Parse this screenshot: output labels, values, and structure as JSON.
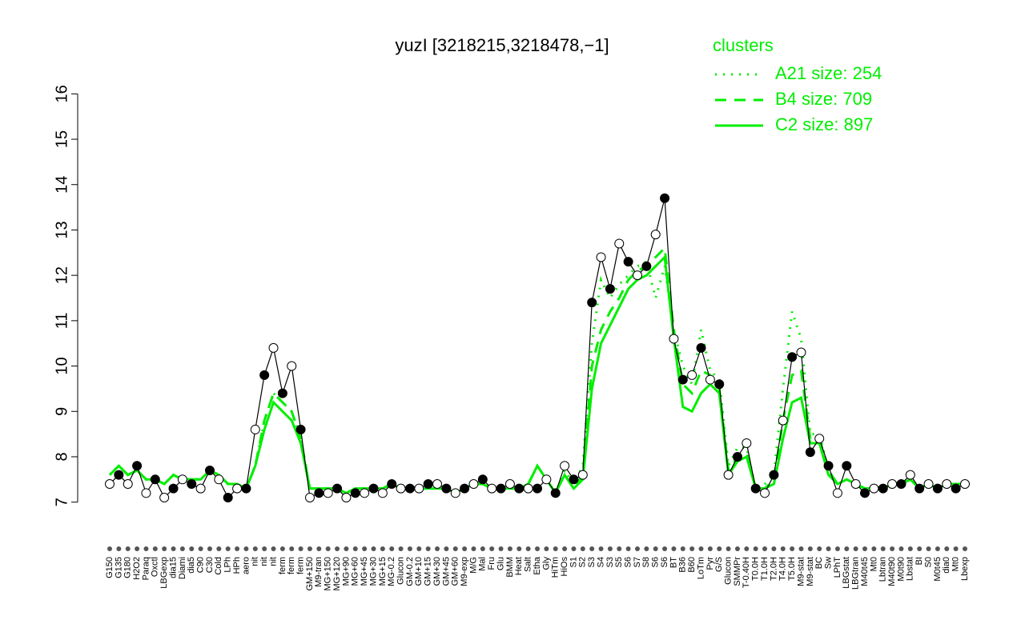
{
  "chart_data": {
    "type": "line",
    "title": "yuzI [3218215,3218478,−1]",
    "legend_title": "clusters",
    "legend_position": "top-right",
    "color": "#000000",
    "categories": [
      "G150",
      "G135",
      "G180",
      "H2O2",
      "Paraq",
      "Oxctl",
      "LBGexp",
      "dia15",
      "Diami",
      "dia5",
      "C90",
      "C30",
      "Cold",
      "LPh",
      "HPh",
      "aero",
      "nit",
      "nit",
      "nit",
      "ferm",
      "ferm",
      "ferm",
      "GM+150",
      "M9-tran",
      "MG+150",
      "MG+120",
      "MG+90",
      "MG+60",
      "MG+45",
      "MG+30",
      "MG+15",
      "MG-0.2",
      "Glucon",
      "GM-0.2",
      "GM+10",
      "GM+15",
      "GM+30",
      "GM+45",
      "GM+60",
      "M9-exp",
      "M/G",
      "Mal",
      "Fru",
      "Glu",
      "BMM",
      "Heat",
      "Salt",
      "Etha",
      "Gly",
      "HiTm",
      "HiOs",
      "S1",
      "S2",
      "S3",
      "S4",
      "S3",
      "S5",
      "S6",
      "S7",
      "S8",
      "S6",
      "S6",
      "BT",
      "B36",
      "B60",
      "LoTm",
      "Pyr",
      "G/S",
      "Glucon",
      "SMMPr",
      "T-0.40H",
      "T0.0H",
      "T1.0H",
      "T2.0H",
      "T4.0H",
      "T5.0H",
      "M9-stat",
      "M9-stat",
      "BC",
      "Sw",
      "LPhT",
      "LBGstat",
      "LBGtran",
      "M40t45",
      "Mt0",
      "Lbtran",
      "M40t90",
      "M0t90",
      "Lbstat",
      "BI",
      "S0",
      "M0t45",
      "dia0",
      "Mt0",
      "Lbexp"
    ],
    "values": [
      7.4,
      7.6,
      7.4,
      7.8,
      7.2,
      7.5,
      7.1,
      7.3,
      7.5,
      7.4,
      7.3,
      7.7,
      7.5,
      7.1,
      7.3,
      7.3,
      8.6,
      9.8,
      10.4,
      9.4,
      10.0,
      8.6,
      7.1,
      7.2,
      7.2,
      7.3,
      7.1,
      7.2,
      7.2,
      7.3,
      7.2,
      7.4,
      7.3,
      7.3,
      7.3,
      7.4,
      7.4,
      7.3,
      7.2,
      7.3,
      7.4,
      7.5,
      7.3,
      7.3,
      7.4,
      7.3,
      7.3,
      7.3,
      7.5,
      7.2,
      7.8,
      7.5,
      7.6,
      11.4,
      12.4,
      11.7,
      12.7,
      12.3,
      12.0,
      12.2,
      12.9,
      13.7,
      10.6,
      9.7,
      9.8,
      10.4,
      9.7,
      9.6,
      7.6,
      8.0,
      8.3,
      7.3,
      7.2,
      7.6,
      8.8,
      10.2,
      10.3,
      8.1,
      8.4,
      7.8,
      7.2,
      7.8,
      7.4,
      7.2,
      7.3,
      7.3,
      7.4,
      7.4,
      7.6,
      7.3,
      7.4,
      7.3,
      7.4,
      7.3,
      7.4
    ],
    "series": [
      {
        "name": "A21 size: 254",
        "color": "#00ee00",
        "linestyle": "dotted",
        "values": [
          7.6,
          7.8,
          7.6,
          7.7,
          7.5,
          7.5,
          7.4,
          7.6,
          7.5,
          7.5,
          7.5,
          7.7,
          7.6,
          7.4,
          7.4,
          7.3,
          7.8,
          8.8,
          9.4,
          9.2,
          9.0,
          8.4,
          7.3,
          7.3,
          7.3,
          7.3,
          7.2,
          7.3,
          7.3,
          7.3,
          7.3,
          7.4,
          7.3,
          7.3,
          7.3,
          7.3,
          7.3,
          7.3,
          7.2,
          7.3,
          7.4,
          7.4,
          7.3,
          7.3,
          7.3,
          7.3,
          7.4,
          7.8,
          7.5,
          7.2,
          7.7,
          7.4,
          7.8,
          10.5,
          11.9,
          11.5,
          11.8,
          12.0,
          12.2,
          12.3,
          11.5,
          12.2,
          10.8,
          10.0,
          9.6,
          10.8,
          9.9,
          9.7,
          7.8,
          8.2,
          8.2,
          7.3,
          7.4,
          7.6,
          9.5,
          11.2,
          10.6,
          8.5,
          8.5,
          7.7,
          7.4,
          7.5,
          7.4,
          7.3,
          7.3,
          7.3,
          7.4,
          7.4,
          7.5,
          7.3,
          7.4,
          7.3,
          7.4,
          7.4,
          7.4
        ]
      },
      {
        "name": "B4 size: 709",
        "color": "#00ee00",
        "linestyle": "dashed",
        "values": [
          7.6,
          7.8,
          7.6,
          7.7,
          7.5,
          7.5,
          7.4,
          7.6,
          7.5,
          7.5,
          7.5,
          7.7,
          7.6,
          7.4,
          7.4,
          7.3,
          7.8,
          8.8,
          9.4,
          9.2,
          9.0,
          8.4,
          7.3,
          7.3,
          7.3,
          7.3,
          7.2,
          7.3,
          7.3,
          7.3,
          7.3,
          7.4,
          7.3,
          7.3,
          7.3,
          7.3,
          7.3,
          7.3,
          7.2,
          7.3,
          7.4,
          7.4,
          7.3,
          7.3,
          7.3,
          7.3,
          7.4,
          7.8,
          7.5,
          7.2,
          7.6,
          7.3,
          7.6,
          10.0,
          10.8,
          11.2,
          11.5,
          11.9,
          12.1,
          12.2,
          12.4,
          12.6,
          10.8,
          9.6,
          9.4,
          9.9,
          9.8,
          9.5,
          7.7,
          8.0,
          8.1,
          7.3,
          7.3,
          7.5,
          8.8,
          9.8,
          9.9,
          8.4,
          8.4,
          7.7,
          7.4,
          7.5,
          7.4,
          7.3,
          7.3,
          7.3,
          7.4,
          7.4,
          7.5,
          7.3,
          7.4,
          7.3,
          7.4,
          7.4,
          7.4
        ]
      },
      {
        "name": "C2 size: 897",
        "color": "#00ee00",
        "linestyle": "solid",
        "values": [
          7.6,
          7.8,
          7.6,
          7.7,
          7.5,
          7.5,
          7.4,
          7.6,
          7.5,
          7.5,
          7.5,
          7.7,
          7.6,
          7.4,
          7.4,
          7.3,
          7.8,
          8.6,
          9.2,
          9.0,
          8.8,
          8.3,
          7.3,
          7.3,
          7.3,
          7.3,
          7.2,
          7.3,
          7.3,
          7.3,
          7.3,
          7.4,
          7.3,
          7.3,
          7.3,
          7.3,
          7.3,
          7.3,
          7.2,
          7.3,
          7.4,
          7.4,
          7.3,
          7.3,
          7.3,
          7.3,
          7.4,
          7.8,
          7.5,
          7.2,
          7.6,
          7.3,
          7.5,
          9.5,
          10.5,
          10.9,
          11.3,
          11.7,
          11.9,
          12.0,
          12.2,
          12.4,
          10.6,
          9.1,
          9.0,
          9.4,
          9.6,
          9.4,
          7.6,
          7.9,
          8.0,
          7.3,
          7.3,
          7.4,
          8.4,
          9.2,
          9.3,
          8.3,
          8.3,
          7.6,
          7.4,
          7.5,
          7.4,
          7.3,
          7.3,
          7.3,
          7.4,
          7.4,
          7.5,
          7.3,
          7.4,
          7.3,
          7.4,
          7.4,
          7.4
        ]
      }
    ],
    "ylim": [
      6.8,
      16.2
    ],
    "yticks": [
      7,
      8,
      9,
      10,
      11,
      12,
      13,
      14,
      15,
      16
    ]
  }
}
